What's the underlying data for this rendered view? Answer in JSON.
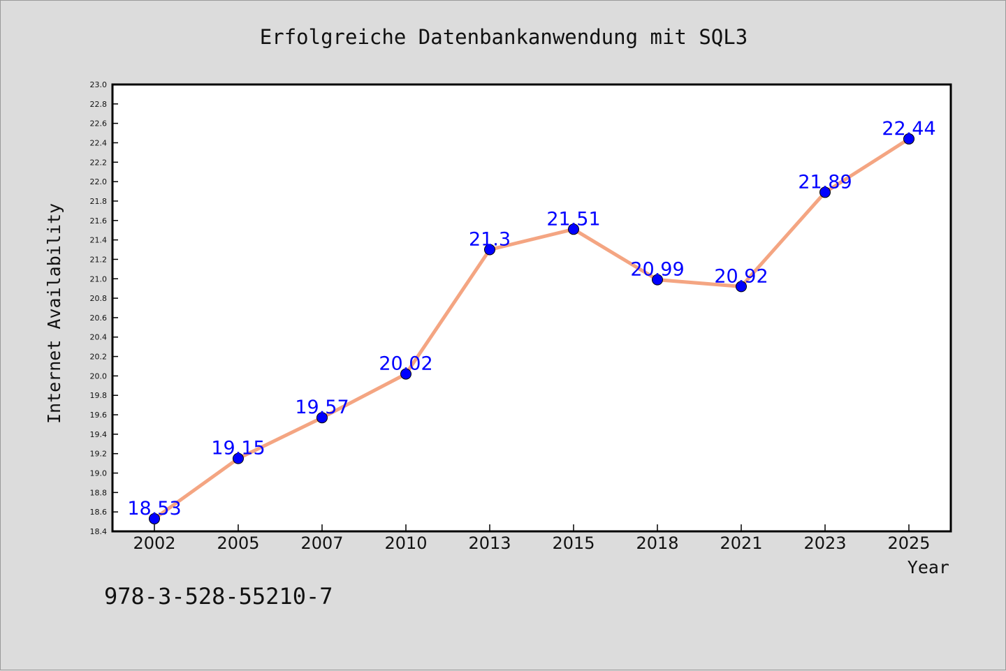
{
  "chart_data": {
    "type": "line",
    "title": "Erfolgreiche Datenbankanwendung mit SQL3",
    "xlabel": "Year",
    "ylabel": "Internet Availability",
    "categories": [
      "2002",
      "2005",
      "2007",
      "2010",
      "2013",
      "2015",
      "2018",
      "2021",
      "2023",
      "2025"
    ],
    "series": [
      {
        "values": [
          18.53,
          19.15,
          19.57,
          20.02,
          21.3,
          21.51,
          20.99,
          20.92,
          21.89,
          22.44
        ],
        "data_labels": [
          "18.53",
          "19.15",
          "19.57",
          "20.02",
          "21.3",
          "21.51",
          "20.99",
          "20.92",
          "21.89",
          "22.44"
        ]
      }
    ],
    "ylim": [
      18.4,
      23.0
    ],
    "y_ticks": [
      "18.4",
      "18.6",
      "18.8",
      "19.0",
      "19.2",
      "19.4",
      "19.6",
      "19.8",
      "20.0",
      "20.2",
      "20.4",
      "20.6",
      "20.8",
      "21.0",
      "21.2",
      "21.4",
      "21.6",
      "21.8",
      "22.0",
      "22.2",
      "22.4",
      "22.6",
      "22.8",
      "23.0"
    ],
    "grid": false,
    "legend": "none",
    "colors": {
      "line": "#f4a582",
      "marker": "#0000ff",
      "label": "#0000ff",
      "plot_background": "#ffffff",
      "figure_background": "#dcdcdc"
    }
  },
  "footer": {
    "isbn": "978-3-528-55210-7"
  }
}
